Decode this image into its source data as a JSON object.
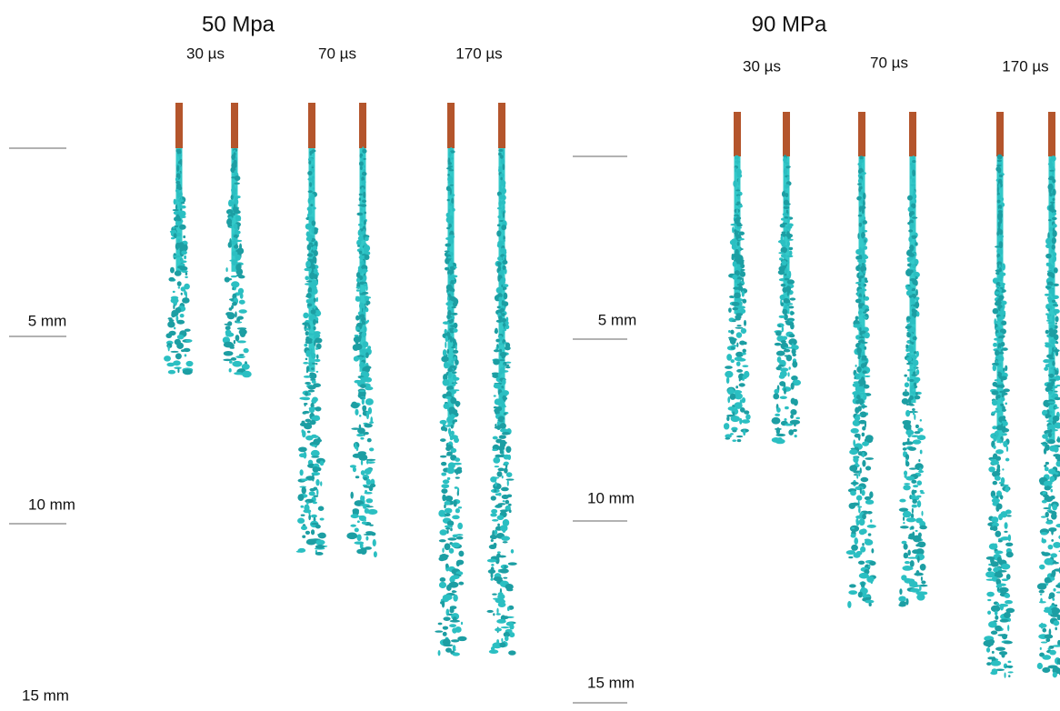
{
  "panels": [
    {
      "pressure": "50 Mpa",
      "times": [
        "30 µs",
        "70 µs",
        "170 µs"
      ],
      "scale_labels": [
        "5 mm",
        "10 mm",
        "15 mm"
      ]
    },
    {
      "pressure": "90 MPa",
      "times": [
        "30 µs",
        "70 µs",
        "170 µs"
      ],
      "scale_labels": [
        "5 mm",
        "10 mm",
        "15 mm"
      ]
    }
  ]
}
